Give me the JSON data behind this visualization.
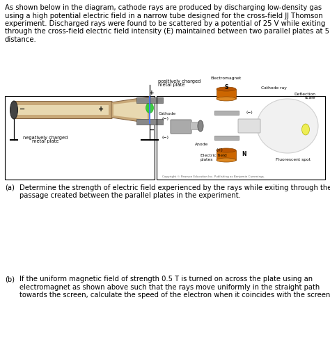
{
  "bg": "#ffffff",
  "fg": "#000000",
  "intro_lines": [
    "As shown below in the diagram, cathode rays are produced by discharging low-density gas",
    "using a high potential electric field in a narrow tube designed for the cross-field JJ Thomson",
    "experiment. Discharged rays were found to be scattered by a potential of 25 V while exiting",
    "through the cross-field electric field intensity (E) maintained between two parallel plates at 5 cm",
    "distance."
  ],
  "qa_line1": "Determine the strength of electric field experienced by the rays while exiting through the",
  "qa_line2": "passage created between the parallel plates in the experiment.",
  "qb_line1": "If the uniform magnetic field of strength 0.5 T is turned on across the plate using an",
  "qb_line2": "electromagnet as shown above such that the rays move uniformly in the straight path",
  "qb_line3": "towards the screen, calculate the speed of the electron when it coincides with the screen.",
  "fs": 7.2,
  "lh": 11.5
}
